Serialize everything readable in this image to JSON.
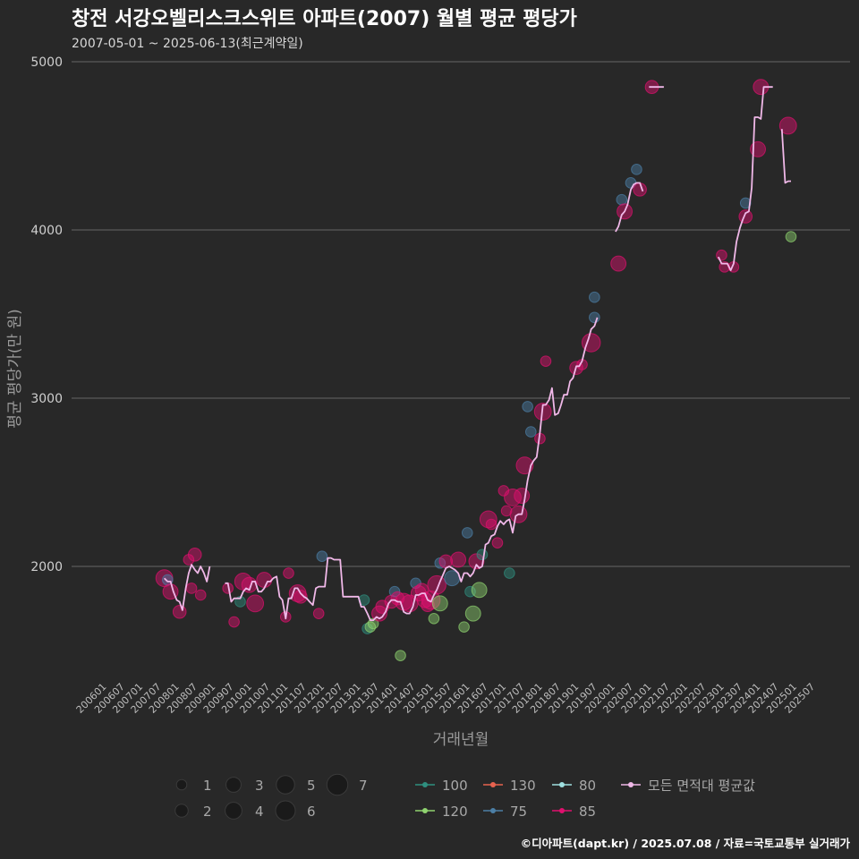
{
  "chart_data": {
    "type": "scatter",
    "title": "창전 서강오벨리스크스위트 아파트(2007) 월별 평균 평당가",
    "subtitle": "2007-05-01 ~ 2025-06-13(최근계약일)",
    "xlabel": "거래년월",
    "ylabel": "평균 평당가(만 원)",
    "ylim": [
      1300,
      5100
    ],
    "yticks": [
      2000,
      3000,
      4000,
      5000
    ],
    "xticks": [
      "200601",
      "200607",
      "200701",
      "200707",
      "200801",
      "200807",
      "200901",
      "200907",
      "201001",
      "201007",
      "201101",
      "201107",
      "201201",
      "201207",
      "201301",
      "201307",
      "201401",
      "201407",
      "201501",
      "201507",
      "201601",
      "201607",
      "201701",
      "201707",
      "201801",
      "201807",
      "201901",
      "201907",
      "202001",
      "202007",
      "202101",
      "202107",
      "202201",
      "202207",
      "202301",
      "202307",
      "202401",
      "202407",
      "202501",
      "202507"
    ],
    "grid": true,
    "caption": "©디아파트(dapt.kr) / 2025.07.08 / 자료=국토교통부 실거래가",
    "size_legend": {
      "values": [
        "1",
        "2",
        "3",
        "4",
        "5",
        "6",
        "7"
      ]
    },
    "color_legend": [
      {
        "name": "100",
        "color": "#2f8f7f"
      },
      {
        "name": "120",
        "color": "#8fd36f"
      },
      {
        "name": "130",
        "color": "#e8624f"
      },
      {
        "name": "75",
        "color": "#4c7fa6"
      },
      {
        "name": "80",
        "color": "#9fe0e0"
      },
      {
        "name": "85",
        "color": "#e0106e"
      },
      {
        "name": "모든 면적대 평균값",
        "color": "#f0b8e8"
      }
    ],
    "avg_line": [
      [
        [
          2007.58,
          1930
        ],
        [
          2007.67,
          1910
        ],
        [
          2007.75,
          1910
        ],
        [
          2007.83,
          1850
        ],
        [
          2007.92,
          1800
        ],
        [
          2008.0,
          1790
        ],
        [
          2008.08,
          1740
        ],
        [
          2008.17,
          1870
        ],
        [
          2008.25,
          1960
        ],
        [
          2008.33,
          2010
        ],
        [
          2008.42,
          1980
        ],
        [
          2008.5,
          1960
        ],
        [
          2008.58,
          2000
        ],
        [
          2008.67,
          1960
        ],
        [
          2008.75,
          1910
        ],
        [
          2008.83,
          2000
        ]
      ],
      [
        [
          2009.25,
          1900
        ],
        [
          2009.33,
          1900
        ],
        [
          2009.42,
          1790
        ],
        [
          2009.5,
          1810
        ],
        [
          2009.58,
          1810
        ],
        [
          2009.67,
          1810
        ],
        [
          2009.75,
          1850
        ],
        [
          2009.83,
          1870
        ],
        [
          2009.92,
          1860
        ],
        [
          2010.0,
          1910
        ],
        [
          2010.08,
          1910
        ],
        [
          2010.17,
          1850
        ],
        [
          2010.25,
          1850
        ],
        [
          2010.33,
          1870
        ],
        [
          2010.42,
          1910
        ],
        [
          2010.5,
          1910
        ],
        [
          2010.58,
          1930
        ],
        [
          2010.67,
          1940
        ],
        [
          2010.75,
          1820
        ],
        [
          2010.83,
          1800
        ],
        [
          2010.92,
          1690
        ],
        [
          2011.0,
          1810
        ],
        [
          2011.08,
          1810
        ],
        [
          2011.17,
          1870
        ],
        [
          2011.25,
          1870
        ],
        [
          2011.33,
          1840
        ],
        [
          2011.42,
          1820
        ],
        [
          2011.5,
          1810
        ],
        [
          2011.58,
          1790
        ],
        [
          2011.67,
          1770
        ],
        [
          2011.75,
          1870
        ],
        [
          2011.83,
          1880
        ],
        [
          2011.92,
          1880
        ],
        [
          2012.0,
          1880
        ],
        [
          2012.08,
          2050
        ],
        [
          2012.17,
          2050
        ],
        [
          2012.25,
          2040
        ],
        [
          2012.33,
          2040
        ],
        [
          2012.42,
          2040
        ],
        [
          2012.5,
          1820
        ],
        [
          2012.58,
          1820
        ],
        [
          2012.67,
          1820
        ],
        [
          2012.75,
          1820
        ],
        [
          2012.83,
          1820
        ],
        [
          2012.92,
          1820
        ],
        [
          2013.0,
          1760
        ],
        [
          2013.08,
          1760
        ],
        [
          2013.17,
          1720
        ],
        [
          2013.25,
          1680
        ],
        [
          2013.33,
          1680
        ],
        [
          2013.42,
          1700
        ],
        [
          2013.5,
          1690
        ],
        [
          2013.58,
          1700
        ],
        [
          2013.67,
          1730
        ],
        [
          2013.75,
          1780
        ],
        [
          2013.83,
          1800
        ],
        [
          2013.92,
          1800
        ],
        [
          2014.0,
          1790
        ],
        [
          2014.08,
          1790
        ],
        [
          2014.17,
          1730
        ],
        [
          2014.25,
          1720
        ],
        [
          2014.33,
          1720
        ],
        [
          2014.42,
          1760
        ],
        [
          2014.5,
          1830
        ],
        [
          2014.58,
          1830
        ],
        [
          2014.67,
          1840
        ],
        [
          2014.75,
          1840
        ],
        [
          2014.83,
          1800
        ],
        [
          2014.92,
          1790
        ],
        [
          2015.0,
          1830
        ],
        [
          2015.08,
          1860
        ],
        [
          2015.17,
          1910
        ],
        [
          2015.25,
          1950
        ],
        [
          2015.33,
          1990
        ],
        [
          2015.42,
          2000
        ],
        [
          2015.5,
          1990
        ],
        [
          2015.58,
          1980
        ],
        [
          2015.67,
          1960
        ],
        [
          2015.75,
          1910
        ],
        [
          2015.83,
          1960
        ],
        [
          2015.92,
          1960
        ],
        [
          2016.0,
          1940
        ],
        [
          2016.08,
          1960
        ],
        [
          2016.17,
          2010
        ],
        [
          2016.25,
          1990
        ],
        [
          2016.33,
          2000
        ],
        [
          2016.42,
          2130
        ],
        [
          2016.5,
          2140
        ],
        [
          2016.58,
          2180
        ],
        [
          2016.67,
          2190
        ],
        [
          2016.75,
          2240
        ],
        [
          2016.83,
          2270
        ],
        [
          2016.92,
          2250
        ],
        [
          2017.0,
          2270
        ],
        [
          2017.08,
          2280
        ],
        [
          2017.17,
          2200
        ],
        [
          2017.25,
          2300
        ],
        [
          2017.33,
          2310
        ],
        [
          2017.42,
          2310
        ],
        [
          2017.5,
          2400
        ],
        [
          2017.58,
          2510
        ],
        [
          2017.67,
          2600
        ],
        [
          2017.75,
          2630
        ],
        [
          2017.83,
          2650
        ],
        [
          2017.92,
          2800
        ],
        [
          2018.0,
          2960
        ],
        [
          2018.08,
          2960
        ],
        [
          2018.17,
          2990
        ],
        [
          2018.25,
          3060
        ],
        [
          2018.33,
          2900
        ],
        [
          2018.42,
          2910
        ],
        [
          2018.5,
          2960
        ],
        [
          2018.58,
          3020
        ],
        [
          2018.67,
          3020
        ],
        [
          2018.75,
          3100
        ],
        [
          2018.83,
          3120
        ],
        [
          2018.92,
          3190
        ],
        [
          2019.0,
          3190
        ],
        [
          2019.08,
          3220
        ],
        [
          2019.17,
          3300
        ],
        [
          2019.25,
          3350
        ],
        [
          2019.33,
          3410
        ],
        [
          2019.42,
          3430
        ],
        [
          2019.5,
          3480
        ]
      ],
      [
        [
          2020.0,
          3990
        ],
        [
          2020.08,
          4020
        ],
        [
          2020.17,
          4090
        ],
        [
          2020.25,
          4110
        ],
        [
          2020.33,
          4150
        ],
        [
          2020.42,
          4240
        ],
        [
          2020.5,
          4270
        ],
        [
          2020.58,
          4280
        ],
        [
          2020.67,
          4280
        ],
        [
          2020.75,
          4230
        ]
      ],
      [
        [
          2020.92,
          4850
        ],
        [
          2021.0,
          4850
        ],
        [
          2021.08,
          4850
        ],
        [
          2021.17,
          4850
        ],
        [
          2021.25,
          4850
        ],
        [
          2021.33,
          4850
        ]
      ],
      [
        [
          2022.83,
          3840
        ],
        [
          2022.92,
          3800
        ],
        [
          2023.0,
          3800
        ],
        [
          2023.08,
          3800
        ],
        [
          2023.17,
          3760
        ],
        [
          2023.25,
          3800
        ],
        [
          2023.33,
          3930
        ],
        [
          2023.42,
          4010
        ],
        [
          2023.5,
          4060
        ],
        [
          2023.58,
          4100
        ],
        [
          2023.67,
          4110
        ],
        [
          2023.75,
          4250
        ],
        [
          2023.83,
          4670
        ],
        [
          2023.92,
          4670
        ],
        [
          2024.0,
          4660
        ],
        [
          2024.08,
          4850
        ],
        [
          2024.17,
          4850
        ],
        [
          2024.25,
          4850
        ],
        [
          2024.33,
          4850
        ]
      ],
      [
        [
          2024.58,
          4600
        ],
        [
          2024.67,
          4280
        ],
        [
          2024.75,
          4290
        ],
        [
          2024.83,
          4290
        ]
      ]
    ],
    "points": [
      {
        "x": 2007.58,
        "y": 1930,
        "s": 4,
        "a": "85"
      },
      {
        "x": 2007.67,
        "y": 1920,
        "s": 1,
        "a": "75"
      },
      {
        "x": 2007.75,
        "y": 1850,
        "s": 3,
        "a": "85"
      },
      {
        "x": 2008.0,
        "y": 1730,
        "s": 2,
        "a": "85"
      },
      {
        "x": 2008.25,
        "y": 2040,
        "s": 1,
        "a": "85"
      },
      {
        "x": 2008.33,
        "y": 1870,
        "s": 1,
        "a": "85"
      },
      {
        "x": 2008.42,
        "y": 2070,
        "s": 2,
        "a": "85"
      },
      {
        "x": 2008.58,
        "y": 1830,
        "s": 1,
        "a": "85"
      },
      {
        "x": 2009.33,
        "y": 1870,
        "s": 1,
        "a": "85"
      },
      {
        "x": 2009.5,
        "y": 1670,
        "s": 1,
        "a": "85"
      },
      {
        "x": 2009.67,
        "y": 1790,
        "s": 1,
        "a": "100"
      },
      {
        "x": 2009.75,
        "y": 1910,
        "s": 4,
        "a": "85"
      },
      {
        "x": 2009.92,
        "y": 1890,
        "s": 3,
        "a": "85"
      },
      {
        "x": 2010.08,
        "y": 1780,
        "s": 4,
        "a": "85"
      },
      {
        "x": 2010.33,
        "y": 1920,
        "s": 3,
        "a": "85"
      },
      {
        "x": 2010.92,
        "y": 1700,
        "s": 1,
        "a": "85"
      },
      {
        "x": 2011.0,
        "y": 1960,
        "s": 1,
        "a": "85"
      },
      {
        "x": 2011.25,
        "y": 1840,
        "s": 4,
        "a": "85"
      },
      {
        "x": 2011.33,
        "y": 1820,
        "s": 2,
        "a": "85"
      },
      {
        "x": 2011.83,
        "y": 1720,
        "s": 1,
        "a": "85"
      },
      {
        "x": 2011.92,
        "y": 2060,
        "s": 1,
        "a": "75"
      },
      {
        "x": 2013.08,
        "y": 1800,
        "s": 1,
        "a": "100"
      },
      {
        "x": 2013.17,
        "y": 1630,
        "s": 1,
        "a": "100"
      },
      {
        "x": 2013.25,
        "y": 1640,
        "s": 1,
        "a": "120"
      },
      {
        "x": 2013.33,
        "y": 1660,
        "s": 1,
        "a": "120"
      },
      {
        "x": 2013.5,
        "y": 1720,
        "s": 3,
        "a": "85"
      },
      {
        "x": 2013.58,
        "y": 1760,
        "s": 2,
        "a": "85"
      },
      {
        "x": 2013.83,
        "y": 1790,
        "s": 2,
        "a": "85"
      },
      {
        "x": 2013.92,
        "y": 1850,
        "s": 1,
        "a": "75"
      },
      {
        "x": 2014.0,
        "y": 1810,
        "s": 2,
        "a": "85"
      },
      {
        "x": 2014.08,
        "y": 1470,
        "s": 1,
        "a": "120"
      },
      {
        "x": 2014.17,
        "y": 1790,
        "s": 4,
        "a": "85"
      },
      {
        "x": 2014.33,
        "y": 1780,
        "s": 4,
        "a": "85"
      },
      {
        "x": 2014.5,
        "y": 1900,
        "s": 1,
        "a": "75"
      },
      {
        "x": 2014.58,
        "y": 1840,
        "s": 3,
        "a": "85"
      },
      {
        "x": 2014.67,
        "y": 1860,
        "s": 2,
        "a": "85"
      },
      {
        "x": 2014.75,
        "y": 1800,
        "s": 3,
        "a": "85"
      },
      {
        "x": 2014.83,
        "y": 1770,
        "s": 2,
        "a": "85"
      },
      {
        "x": 2014.92,
        "y": 1800,
        "s": 5,
        "a": "85"
      },
      {
        "x": 2015.0,
        "y": 1690,
        "s": 1,
        "a": "120"
      },
      {
        "x": 2015.08,
        "y": 1890,
        "s": 5,
        "a": "85"
      },
      {
        "x": 2015.17,
        "y": 1780,
        "s": 3,
        "a": "120"
      },
      {
        "x": 2015.17,
        "y": 2020,
        "s": 1,
        "a": "75"
      },
      {
        "x": 2015.33,
        "y": 2030,
        "s": 2,
        "a": "85"
      },
      {
        "x": 2015.5,
        "y": 1930,
        "s": 3,
        "a": "75"
      },
      {
        "x": 2015.67,
        "y": 2040,
        "s": 3,
        "a": "85"
      },
      {
        "x": 2015.83,
        "y": 1640,
        "s": 1,
        "a": "120"
      },
      {
        "x": 2015.92,
        "y": 2200,
        "s": 1,
        "a": "75"
      },
      {
        "x": 2016.0,
        "y": 1850,
        "s": 1,
        "a": "100"
      },
      {
        "x": 2016.08,
        "y": 1720,
        "s": 3,
        "a": "120"
      },
      {
        "x": 2016.17,
        "y": 2030,
        "s": 3,
        "a": "85"
      },
      {
        "x": 2016.25,
        "y": 1860,
        "s": 3,
        "a": "120"
      },
      {
        "x": 2016.33,
        "y": 2070,
        "s": 1,
        "a": "100"
      },
      {
        "x": 2016.5,
        "y": 2280,
        "s": 4,
        "a": "85"
      },
      {
        "x": 2016.58,
        "y": 2250,
        "s": 1,
        "a": "85"
      },
      {
        "x": 2016.75,
        "y": 2140,
        "s": 1,
        "a": "85"
      },
      {
        "x": 2016.92,
        "y": 2450,
        "s": 1,
        "a": "85"
      },
      {
        "x": 2017.0,
        "y": 2330,
        "s": 1,
        "a": "85"
      },
      {
        "x": 2017.08,
        "y": 1960,
        "s": 1,
        "a": "100"
      },
      {
        "x": 2017.17,
        "y": 2410,
        "s": 4,
        "a": "85"
      },
      {
        "x": 2017.33,
        "y": 2310,
        "s": 4,
        "a": "85"
      },
      {
        "x": 2017.42,
        "y": 2420,
        "s": 3,
        "a": "85"
      },
      {
        "x": 2017.5,
        "y": 2600,
        "s": 4,
        "a": "85"
      },
      {
        "x": 2017.58,
        "y": 2950,
        "s": 1,
        "a": "75"
      },
      {
        "x": 2017.67,
        "y": 2800,
        "s": 1,
        "a": "75"
      },
      {
        "x": 2017.92,
        "y": 2760,
        "s": 1,
        "a": "85"
      },
      {
        "x": 2018.0,
        "y": 2920,
        "s": 4,
        "a": "85"
      },
      {
        "x": 2018.08,
        "y": 3220,
        "s": 1,
        "a": "85"
      },
      {
        "x": 2018.92,
        "y": 3180,
        "s": 2,
        "a": "85"
      },
      {
        "x": 2019.08,
        "y": 3200,
        "s": 1,
        "a": "85"
      },
      {
        "x": 2019.33,
        "y": 3330,
        "s": 5,
        "a": "85"
      },
      {
        "x": 2019.42,
        "y": 3480,
        "s": 1,
        "a": "75"
      },
      {
        "x": 2019.42,
        "y": 3600,
        "s": 1,
        "a": "75"
      },
      {
        "x": 2020.08,
        "y": 3800,
        "s": 3,
        "a": "85"
      },
      {
        "x": 2020.17,
        "y": 4180,
        "s": 1,
        "a": "75"
      },
      {
        "x": 2020.25,
        "y": 4110,
        "s": 3,
        "a": "85"
      },
      {
        "x": 2020.42,
        "y": 4280,
        "s": 1,
        "a": "75"
      },
      {
        "x": 2020.58,
        "y": 4360,
        "s": 1,
        "a": "75"
      },
      {
        "x": 2020.67,
        "y": 4240,
        "s": 2,
        "a": "85"
      },
      {
        "x": 2021.0,
        "y": 4850,
        "s": 2,
        "a": "85"
      },
      {
        "x": 2022.92,
        "y": 3850,
        "s": 1,
        "a": "85"
      },
      {
        "x": 2023.0,
        "y": 3780,
        "s": 1,
        "a": "85"
      },
      {
        "x": 2023.25,
        "y": 3780,
        "s": 1,
        "a": "85"
      },
      {
        "x": 2023.58,
        "y": 4160,
        "s": 1,
        "a": "75"
      },
      {
        "x": 2023.58,
        "y": 4080,
        "s": 2,
        "a": "85"
      },
      {
        "x": 2023.92,
        "y": 4480,
        "s": 3,
        "a": "85"
      },
      {
        "x": 2024.0,
        "y": 4850,
        "s": 3,
        "a": "85"
      },
      {
        "x": 2024.75,
        "y": 4620,
        "s": 4,
        "a": "85"
      },
      {
        "x": 2024.83,
        "y": 3960,
        "s": 1,
        "a": "120"
      }
    ]
  }
}
